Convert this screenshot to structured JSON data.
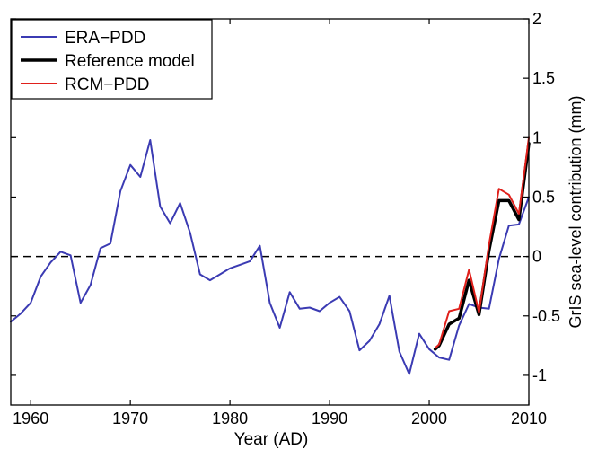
{
  "chart_data": {
    "type": "line",
    "xlabel": "Year (AD)",
    "ylabel": "GrIS sea-level contribution (mm)",
    "xlim": [
      1958,
      2010
    ],
    "ylim": [
      -1.25,
      2
    ],
    "x_ticks": [
      1960,
      1970,
      1980,
      1990,
      2000,
      2010
    ],
    "y_ticks": [
      -1,
      -0.5,
      0,
      0.5,
      1,
      1.5,
      2
    ],
    "y_tick_labels": [
      "-1",
      "-0.5",
      "0",
      "0.5",
      "1",
      "1.5",
      "2"
    ],
    "y_axis_side": "right",
    "zero_reference_line": "dashed",
    "grid": false,
    "legend_position": "top-left",
    "series": [
      {
        "name": "ERA−PDD",
        "color": "#3b3bb3",
        "line_width": 2,
        "x": [
          1958,
          1959,
          1960,
          1961,
          1962,
          1963,
          1964,
          1965,
          1966,
          1967,
          1968,
          1969,
          1970,
          1971,
          1972,
          1973,
          1974,
          1975,
          1976,
          1977,
          1978,
          1979,
          1980,
          1981,
          1982,
          1983,
          1984,
          1985,
          1986,
          1987,
          1988,
          1989,
          1990,
          1991,
          1992,
          1993,
          1994,
          1995,
          1996,
          1997,
          1998,
          1999,
          2000,
          2001,
          2002,
          2003,
          2004,
          2005,
          2006,
          2007,
          2008,
          2009,
          2010
        ],
        "values": [
          -0.55,
          -0.48,
          -0.39,
          -0.17,
          -0.05,
          0.04,
          0.01,
          -0.39,
          -0.24,
          0.07,
          0.11,
          0.55,
          0.77,
          0.67,
          0.98,
          0.42,
          0.28,
          0.45,
          0.2,
          -0.15,
          -0.2,
          -0.15,
          -0.1,
          -0.07,
          -0.04,
          0.09,
          -0.39,
          -0.6,
          -0.3,
          -0.44,
          -0.43,
          -0.46,
          -0.39,
          -0.34,
          -0.46,
          -0.79,
          -0.71,
          -0.57,
          -0.33,
          -0.8,
          -0.99,
          -0.65,
          -0.78,
          -0.85,
          -0.87,
          -0.58,
          -0.4,
          -0.43,
          -0.44,
          -0.02,
          0.26,
          0.27,
          0.5
        ]
      },
      {
        "name": "Reference model",
        "color": "#000000",
        "line_width": 3.5,
        "x": [
          2000.6,
          2001,
          2002,
          2003,
          2004,
          2005,
          2006,
          2007,
          2008,
          2009,
          2010
        ],
        "values": [
          -0.78,
          -0.75,
          -0.57,
          -0.52,
          -0.2,
          -0.49,
          0.05,
          0.47,
          0.47,
          0.31,
          0.95
        ]
      },
      {
        "name": "RCM−PDD",
        "color": "#e0201b",
        "line_width": 2,
        "x": [
          2000.6,
          2001,
          2002,
          2003,
          2004,
          2005,
          2006,
          2007,
          2008,
          2009,
          2010
        ],
        "values": [
          -0.77,
          -0.74,
          -0.46,
          -0.44,
          -0.11,
          -0.47,
          0.1,
          0.57,
          0.52,
          0.36,
          1.0
        ]
      }
    ]
  }
}
